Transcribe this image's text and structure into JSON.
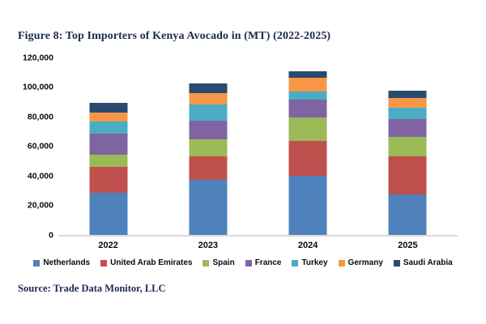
{
  "figure": {
    "source": "Source: Trade Data Monitor, LLC"
  },
  "chart_data": {
    "type": "bar",
    "stacked": true,
    "title": "Figure 8: Top Importers of Kenya Avocado in (MT) (2022-2025)",
    "xlabel": "",
    "ylabel": "",
    "categories": [
      "2022",
      "2023",
      "2024",
      "2025"
    ],
    "series": [
      {
        "name": "Netherlands",
        "color": "#4F81BD",
        "values": [
          28500,
          37500,
          40000,
          27500
        ]
      },
      {
        "name": "United Arab Emirates",
        "color": "#C0504D",
        "values": [
          17500,
          15500,
          23500,
          25500
        ]
      },
      {
        "name": "Spain",
        "color": "#9BBB59",
        "values": [
          8000,
          11500,
          16000,
          13500
        ]
      },
      {
        "name": "France",
        "color": "#8064A2",
        "values": [
          14500,
          12500,
          12000,
          12000
        ]
      },
      {
        "name": "Turkey",
        "color": "#4BACC6",
        "values": [
          8000,
          11000,
          5500,
          7500
        ]
      },
      {
        "name": "Germany",
        "color": "#F79646",
        "values": [
          6500,
          8000,
          9500,
          6500
        ]
      },
      {
        "name": "Saudi Arabia",
        "color": "#2A4A70",
        "values": [
          6500,
          6500,
          4000,
          5000
        ]
      }
    ],
    "totals": [
      89500,
      102500,
      110500,
      97500
    ],
    "ylim": [
      0,
      120000
    ],
    "ytick_step": 20000,
    "yticks": [
      "0",
      "20,000",
      "40,000",
      "60,000",
      "80,000",
      "100,000",
      "120,000"
    ],
    "grid": false,
    "legend_position": "bottom",
    "axis_line_color": "#D9D9D9"
  }
}
